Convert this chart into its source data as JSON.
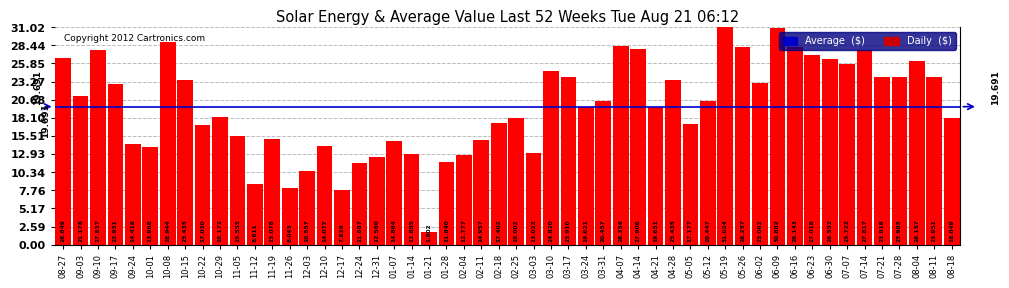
{
  "title": "Solar Energy & Average Value Last 52 Weeks Tue Aug 21 06:12",
  "copyright": "Copyright 2012 Cartronics.com",
  "average_value": 19.691,
  "average_label": "19.691",
  "bar_color": "#ff0000",
  "average_line_color": "#0000cc",
  "background_color": "#ffffff",
  "plot_bg_color": "#ffffff",
  "ylim": [
    0,
    31.02
  ],
  "yticks": [
    0.0,
    2.59,
    5.17,
    7.76,
    10.34,
    12.93,
    15.51,
    18.1,
    20.68,
    23.27,
    25.85,
    28.44,
    31.02
  ],
  "grid_color": "#bbbbbb",
  "legend_avg_color": "#0000cc",
  "legend_daily_color": "#cc0000",
  "categories": [
    "08-27",
    "09-03",
    "09-10",
    "09-17",
    "09-24",
    "10-01",
    "10-08",
    "10-15",
    "10-22",
    "10-29",
    "11-05",
    "11-12",
    "11-19",
    "11-26",
    "12-03",
    "12-10",
    "12-17",
    "12-24",
    "12-31",
    "01-07",
    "01-14",
    "01-21",
    "01-28",
    "02-04",
    "02-11",
    "02-18",
    "02-25",
    "03-03",
    "03-10",
    "03-17",
    "03-24",
    "03-31",
    "04-07",
    "04-14",
    "04-21",
    "04-28",
    "05-05",
    "05-12",
    "05-19",
    "05-26",
    "06-02",
    "06-09",
    "06-16",
    "06-23",
    "06-30",
    "07-07",
    "07-14",
    "07-21",
    "07-28",
    "08-04",
    "08-11",
    "08-18"
  ],
  "values": [
    26.649,
    21.178,
    27.837,
    22.931,
    14.418,
    13.968,
    28.944,
    23.435,
    17.03,
    18.172,
    15.555,
    8.611,
    15.078,
    8.043,
    10.557,
    14.077,
    7.826,
    11.687,
    12.56,
    14.864,
    12.885,
    1.802,
    11.84,
    12.777,
    14.957,
    17.402,
    18.002,
    13.023,
    24.82,
    23.91,
    19.621,
    20.457,
    28.356,
    27.906,
    19.651,
    23.435,
    17.177,
    20.447,
    31.024,
    28.257,
    23.062,
    30.882,
    28.143,
    27.018,
    26.552,
    25.722,
    27.817,
    23.918,
    23.985,
    26.157,
    23.951,
    18.049
  ]
}
